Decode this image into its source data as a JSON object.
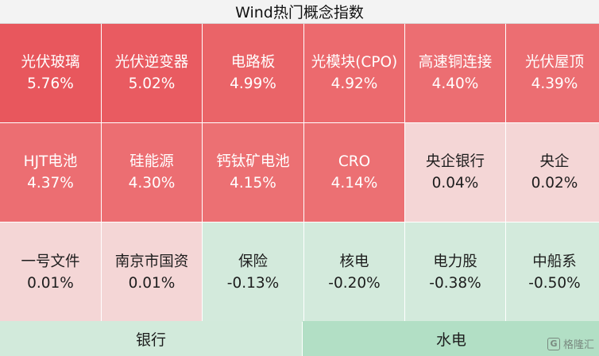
{
  "chart_data": {
    "type": "heatmap",
    "title": "Wind热门概念指数",
    "unit": "%",
    "tiles": [
      {
        "name": "光伏玻璃",
        "change": 5.76,
        "label": "5.76%",
        "color": "#e8575d"
      },
      {
        "name": "光伏逆变器",
        "change": 5.02,
        "label": "5.02%",
        "color": "#e95b61"
      },
      {
        "name": "电路板",
        "change": 4.99,
        "label": "4.99%",
        "color": "#ea6468"
      },
      {
        "name": "光模块(CPO)",
        "change": 4.92,
        "label": "4.92%",
        "color": "#ec6a6e"
      },
      {
        "name": "高速铜连接",
        "change": 4.4,
        "label": "4.40%",
        "color": "#ec6e72"
      },
      {
        "name": "光伏屋顶",
        "change": 4.39,
        "label": "4.39%",
        "color": "#ec6e72"
      },
      {
        "name": "HJT电池",
        "change": 4.37,
        "label": "4.37%",
        "color": "#ec6e72"
      },
      {
        "name": "硅能源",
        "change": 4.3,
        "label": "4.30%",
        "color": "#ec6e72"
      },
      {
        "name": "钙钛矿电池",
        "change": 4.15,
        "label": "4.15%",
        "color": "#ec7073"
      },
      {
        "name": "CRO",
        "change": 4.14,
        "label": "4.14%",
        "color": "#ec7073"
      },
      {
        "name": "央企银行",
        "change": 0.04,
        "label": "0.04%",
        "color": "#f4d6d6"
      },
      {
        "name": "央企",
        "change": 0.02,
        "label": "0.02%",
        "color": "#f4d6d6"
      },
      {
        "name": "一号文件",
        "change": 0.01,
        "label": "0.01%",
        "color": "#f4d6d6"
      },
      {
        "name": "南京市国资",
        "change": 0.01,
        "label": "0.01%",
        "color": "#f4d6d6"
      },
      {
        "name": "保险",
        "change": -0.13,
        "label": "-0.13%",
        "color": "#d3eadc"
      },
      {
        "name": "核电",
        "change": -0.2,
        "label": "-0.20%",
        "color": "#d3eadc"
      },
      {
        "name": "电力股",
        "change": -0.38,
        "label": "-0.38%",
        "color": "#d3eadc"
      },
      {
        "name": "中船系",
        "change": -0.5,
        "label": "-0.50%",
        "color": "#d3eadc"
      }
    ],
    "bottom_tiles": [
      {
        "name": "银行",
        "color": "#d2eadb"
      },
      {
        "name": "水电",
        "color": "#b2dfc5"
      }
    ]
  },
  "watermark": {
    "logo_glyph": "G",
    "text": "格隆汇"
  }
}
